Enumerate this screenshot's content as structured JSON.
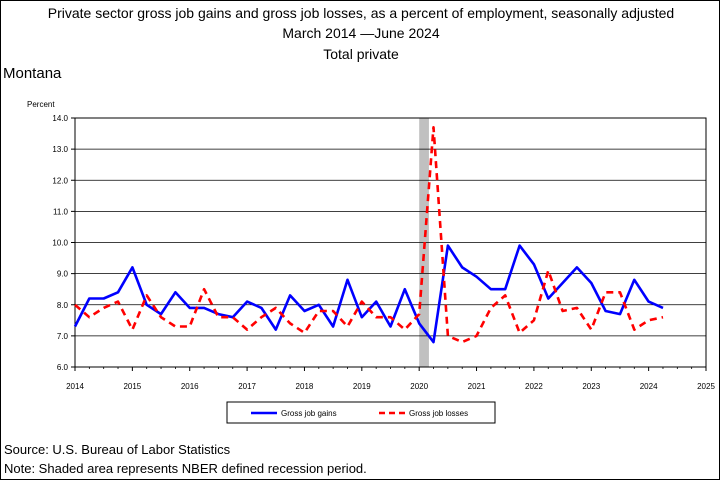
{
  "header": {
    "title_line1": "Private sector gross job gains and gross job losses, as a percent of employment, seasonally adjusted",
    "title_line2": "March 2014 —June 2024",
    "title_line3": "Total private"
  },
  "region": "Montana",
  "footer": {
    "source": "Source: U.S. Bureau of Labor Statistics",
    "note": "Note: Shaded area represents NBER defined recession period."
  },
  "chart_data": {
    "type": "line",
    "ylabel": "Percent",
    "ylim": [
      6.0,
      14.0
    ],
    "yticks": [
      "6.0",
      "7.0",
      "8.0",
      "9.0",
      "10.0",
      "11.0",
      "12.0",
      "13.0",
      "14.0"
    ],
    "xlim": [
      2014,
      2025
    ],
    "xticks": [
      "2014",
      "2015",
      "2016",
      "2017",
      "2018",
      "2019",
      "2020",
      "2021",
      "2022",
      "2023",
      "2024",
      "2025"
    ],
    "grid": "horizontal",
    "recession": {
      "start": 2020.0,
      "end": 2020.17,
      "color": "#c0c0c0"
    },
    "legend_position": "bottom",
    "x": [
      2014.0,
      2014.25,
      2014.5,
      2014.75,
      2015.0,
      2015.25,
      2015.5,
      2015.75,
      2016.0,
      2016.25,
      2016.5,
      2016.75,
      2017.0,
      2017.25,
      2017.5,
      2017.75,
      2018.0,
      2018.25,
      2018.5,
      2018.75,
      2019.0,
      2019.25,
      2019.5,
      2019.75,
      2020.0,
      2020.25,
      2020.5,
      2020.75,
      2021.0,
      2021.25,
      2021.5,
      2021.75,
      2022.0,
      2022.25,
      2022.5,
      2022.75,
      2023.0,
      2023.25,
      2023.5,
      2023.75,
      2024.0,
      2024.25
    ],
    "series": [
      {
        "name": "Gross job gains",
        "color": "#0000ff",
        "dash": "solid",
        "values": [
          7.3,
          8.2,
          8.2,
          8.4,
          9.2,
          8.0,
          7.7,
          8.4,
          7.9,
          7.9,
          7.7,
          7.6,
          8.1,
          7.9,
          7.2,
          8.3,
          7.8,
          8.0,
          7.3,
          8.8,
          7.6,
          8.1,
          7.3,
          8.5,
          7.4,
          6.8,
          9.9,
          9.2,
          8.9,
          8.5,
          8.5,
          9.9,
          9.3,
          8.2,
          8.7,
          9.2,
          8.7,
          7.8,
          7.7,
          8.8,
          8.1,
          7.9
        ]
      },
      {
        "name": "Gross job losses",
        "color": "#ff0000",
        "dash": "dashed",
        "values": [
          8.0,
          7.6,
          7.9,
          8.1,
          7.2,
          8.3,
          7.6,
          7.3,
          7.3,
          8.5,
          7.6,
          7.6,
          7.2,
          7.6,
          7.9,
          7.4,
          7.1,
          7.8,
          7.8,
          7.3,
          8.1,
          7.6,
          7.6,
          7.2,
          7.7,
          13.7,
          7.0,
          6.8,
          7.0,
          7.9,
          8.3,
          7.1,
          7.5,
          9.1,
          7.8,
          7.9,
          7.2,
          8.4,
          8.4,
          7.2,
          7.5,
          7.6
        ]
      }
    ]
  }
}
